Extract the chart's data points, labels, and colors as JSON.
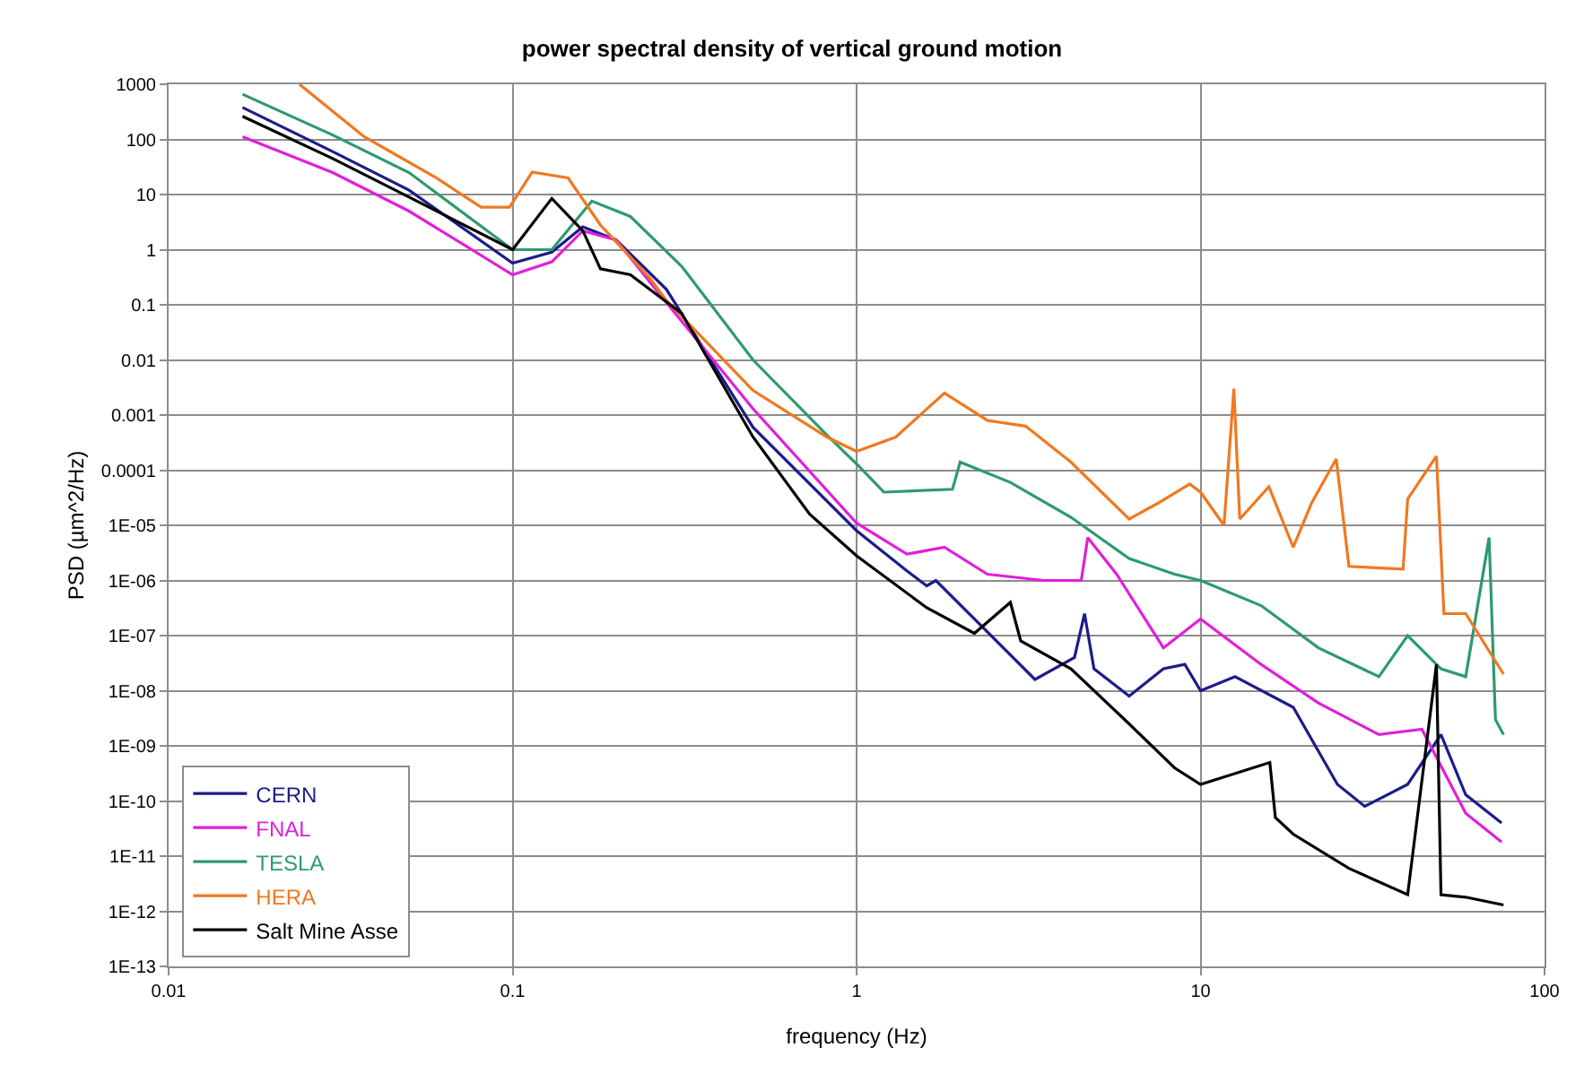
{
  "chart_data": {
    "type": "line",
    "title": "power spectral density of vertical ground motion",
    "xlabel": "frequency (Hz)",
    "ylabel": "PSD (µm^2/Hz)",
    "log": "xy",
    "grid": true,
    "legend": "bottom left",
    "marker": "none",
    "line_style": "solid",
    "xlim": [
      0.01,
      100
    ],
    "xticks": [
      0.01,
      0.1,
      1,
      10,
      100
    ],
    "ylim": [
      1e-13,
      1000
    ],
    "yticks": [
      1000,
      100,
      10,
      1,
      0.1,
      0.01,
      0.001,
      0.0001,
      {
        "value": 1e-05,
        "label": "1E-05"
      },
      {
        "value": 1e-06,
        "label": "1E-06"
      },
      {
        "value": 1e-07,
        "label": "1E-07"
      },
      {
        "value": 1e-08,
        "label": "1E-08"
      },
      {
        "value": 1e-09,
        "label": "1E-09"
      },
      {
        "value": 1e-10,
        "label": "1E-10"
      },
      {
        "value": 1e-11,
        "label": "1E-11"
      },
      {
        "value": 1e-12,
        "label": "1E-12"
      },
      {
        "value": 1e-13,
        "label": "1E-13"
      }
    ],
    "series": [
      {
        "name": "CERN",
        "color": "#1c1c8a",
        "x": [
          0.0164,
          0.03,
          0.05,
          0.1,
          0.13,
          0.16,
          0.2,
          0.28,
          0.5,
          1,
          1.4,
          1.6,
          1.7,
          2.2,
          3.3,
          4.3,
          4.6,
          4.9,
          6.2,
          7.8,
          9,
          10,
          12.6,
          18.6,
          25,
          30,
          40,
          50,
          59,
          75
        ],
        "values": [
          380,
          60,
          12,
          0.57,
          0.9,
          2.6,
          1.5,
          0.19,
          0.0006,
          8e-06,
          1.5e-06,
          8e-07,
          1e-06,
          2e-07,
          1.6e-08,
          4e-08,
          2.5e-07,
          2.5e-08,
          8e-09,
          2.5e-08,
          3e-08,
          1e-08,
          1.8e-08,
          5e-09,
          2e-10,
          8e-11,
          2e-10,
          1.6e-09,
          1.3e-10,
          4e-11
        ]
      },
      {
        "name": "FNAL",
        "color": "#e020d8",
        "x": [
          0.0164,
          0.03,
          0.05,
          0.1,
          0.13,
          0.16,
          0.2,
          0.28,
          0.5,
          1,
          1.4,
          1.8,
          2.4,
          3.5,
          4.5,
          4.7,
          5.7,
          7.8,
          10,
          15,
          22,
          33,
          44,
          59,
          75
        ],
        "values": [
          112,
          25,
          5,
          0.35,
          0.6,
          2.2,
          1.5,
          0.11,
          0.0013,
          1.1e-05,
          3e-06,
          4e-06,
          1.3e-06,
          1e-06,
          1e-06,
          6e-06,
          1.3e-06,
          6e-08,
          2e-07,
          3e-08,
          6e-09,
          1.6e-09,
          2e-09,
          6e-11,
          1.8e-11
        ]
      },
      {
        "name": "TESLA",
        "color": "#2e9a6e",
        "x": [
          0.0164,
          0.03,
          0.05,
          0.1,
          0.13,
          0.17,
          0.22,
          0.31,
          0.5,
          0.83,
          1,
          1.2,
          1.9,
          2,
          2.8,
          4.2,
          6.2,
          8.4,
          10,
          15,
          22,
          33,
          40,
          50,
          59,
          69,
          72,
          76
        ],
        "values": [
          660,
          120,
          25,
          1,
          1,
          7.6,
          4,
          0.5,
          0.01,
          0.0004,
          0.00013,
          4e-05,
          4.5e-05,
          0.00014,
          6e-05,
          1.4e-05,
          2.5e-06,
          1.3e-06,
          1e-06,
          3.5e-07,
          6e-08,
          1.8e-08,
          1e-07,
          2.5e-08,
          1.8e-08,
          6e-06,
          3e-09,
          1.6e-09
        ]
      },
      {
        "name": "HERA",
        "color": "#f07820",
        "x": [
          0.024,
          0.037,
          0.06,
          0.081,
          0.098,
          0.114,
          0.145,
          0.18,
          0.25,
          0.28,
          0.5,
          0.82,
          1,
          1.3,
          1.8,
          2.4,
          3.1,
          4.2,
          6.2,
          7.5,
          9.3,
          10,
          11.7,
          12.5,
          13,
          15.8,
          18.6,
          21,
          24.8,
          27,
          38.8,
          40,
          48.5,
          51,
          59,
          76
        ],
        "values": [
          1000,
          112,
          20,
          5.9,
          5.9,
          25.6,
          20,
          2.8,
          0.31,
          0.12,
          0.0028,
          0.0004,
          0.00022,
          0.0004,
          0.0025,
          0.0008,
          0.00063,
          0.00014,
          1.3e-05,
          2.5e-05,
          5.6e-05,
          4e-05,
          1e-05,
          0.003,
          1.3e-05,
          5e-05,
          4e-06,
          2.5e-05,
          0.00016,
          1.8e-06,
          1.6e-06,
          3e-05,
          0.00018,
          2.5e-07,
          2.5e-07,
          2e-08
        ]
      },
      {
        "name": "Salt Mine Asse",
        "color": "#000000",
        "x": [
          0.0164,
          0.03,
          0.05,
          0.1,
          0.13,
          0.16,
          0.18,
          0.22,
          0.31,
          0.5,
          0.73,
          1,
          1.6,
          2.2,
          2.8,
          3,
          4.2,
          6.2,
          8.4,
          10,
          15.9,
          16.5,
          18.6,
          27,
          40,
          48.5,
          50,
          59,
          76
        ],
        "values": [
          263,
          45,
          9,
          1,
          8.5,
          2.2,
          0.45,
          0.35,
          0.07,
          0.0004,
          1.6e-05,
          2.8e-06,
          3.2e-07,
          1.1e-07,
          4e-07,
          8e-08,
          2.5e-08,
          2.5e-09,
          4e-10,
          2e-10,
          5e-10,
          5e-11,
          2.5e-11,
          6e-12,
          2e-12,
          3e-08,
          2e-12,
          1.8e-12,
          1.3e-12
        ]
      }
    ]
  }
}
